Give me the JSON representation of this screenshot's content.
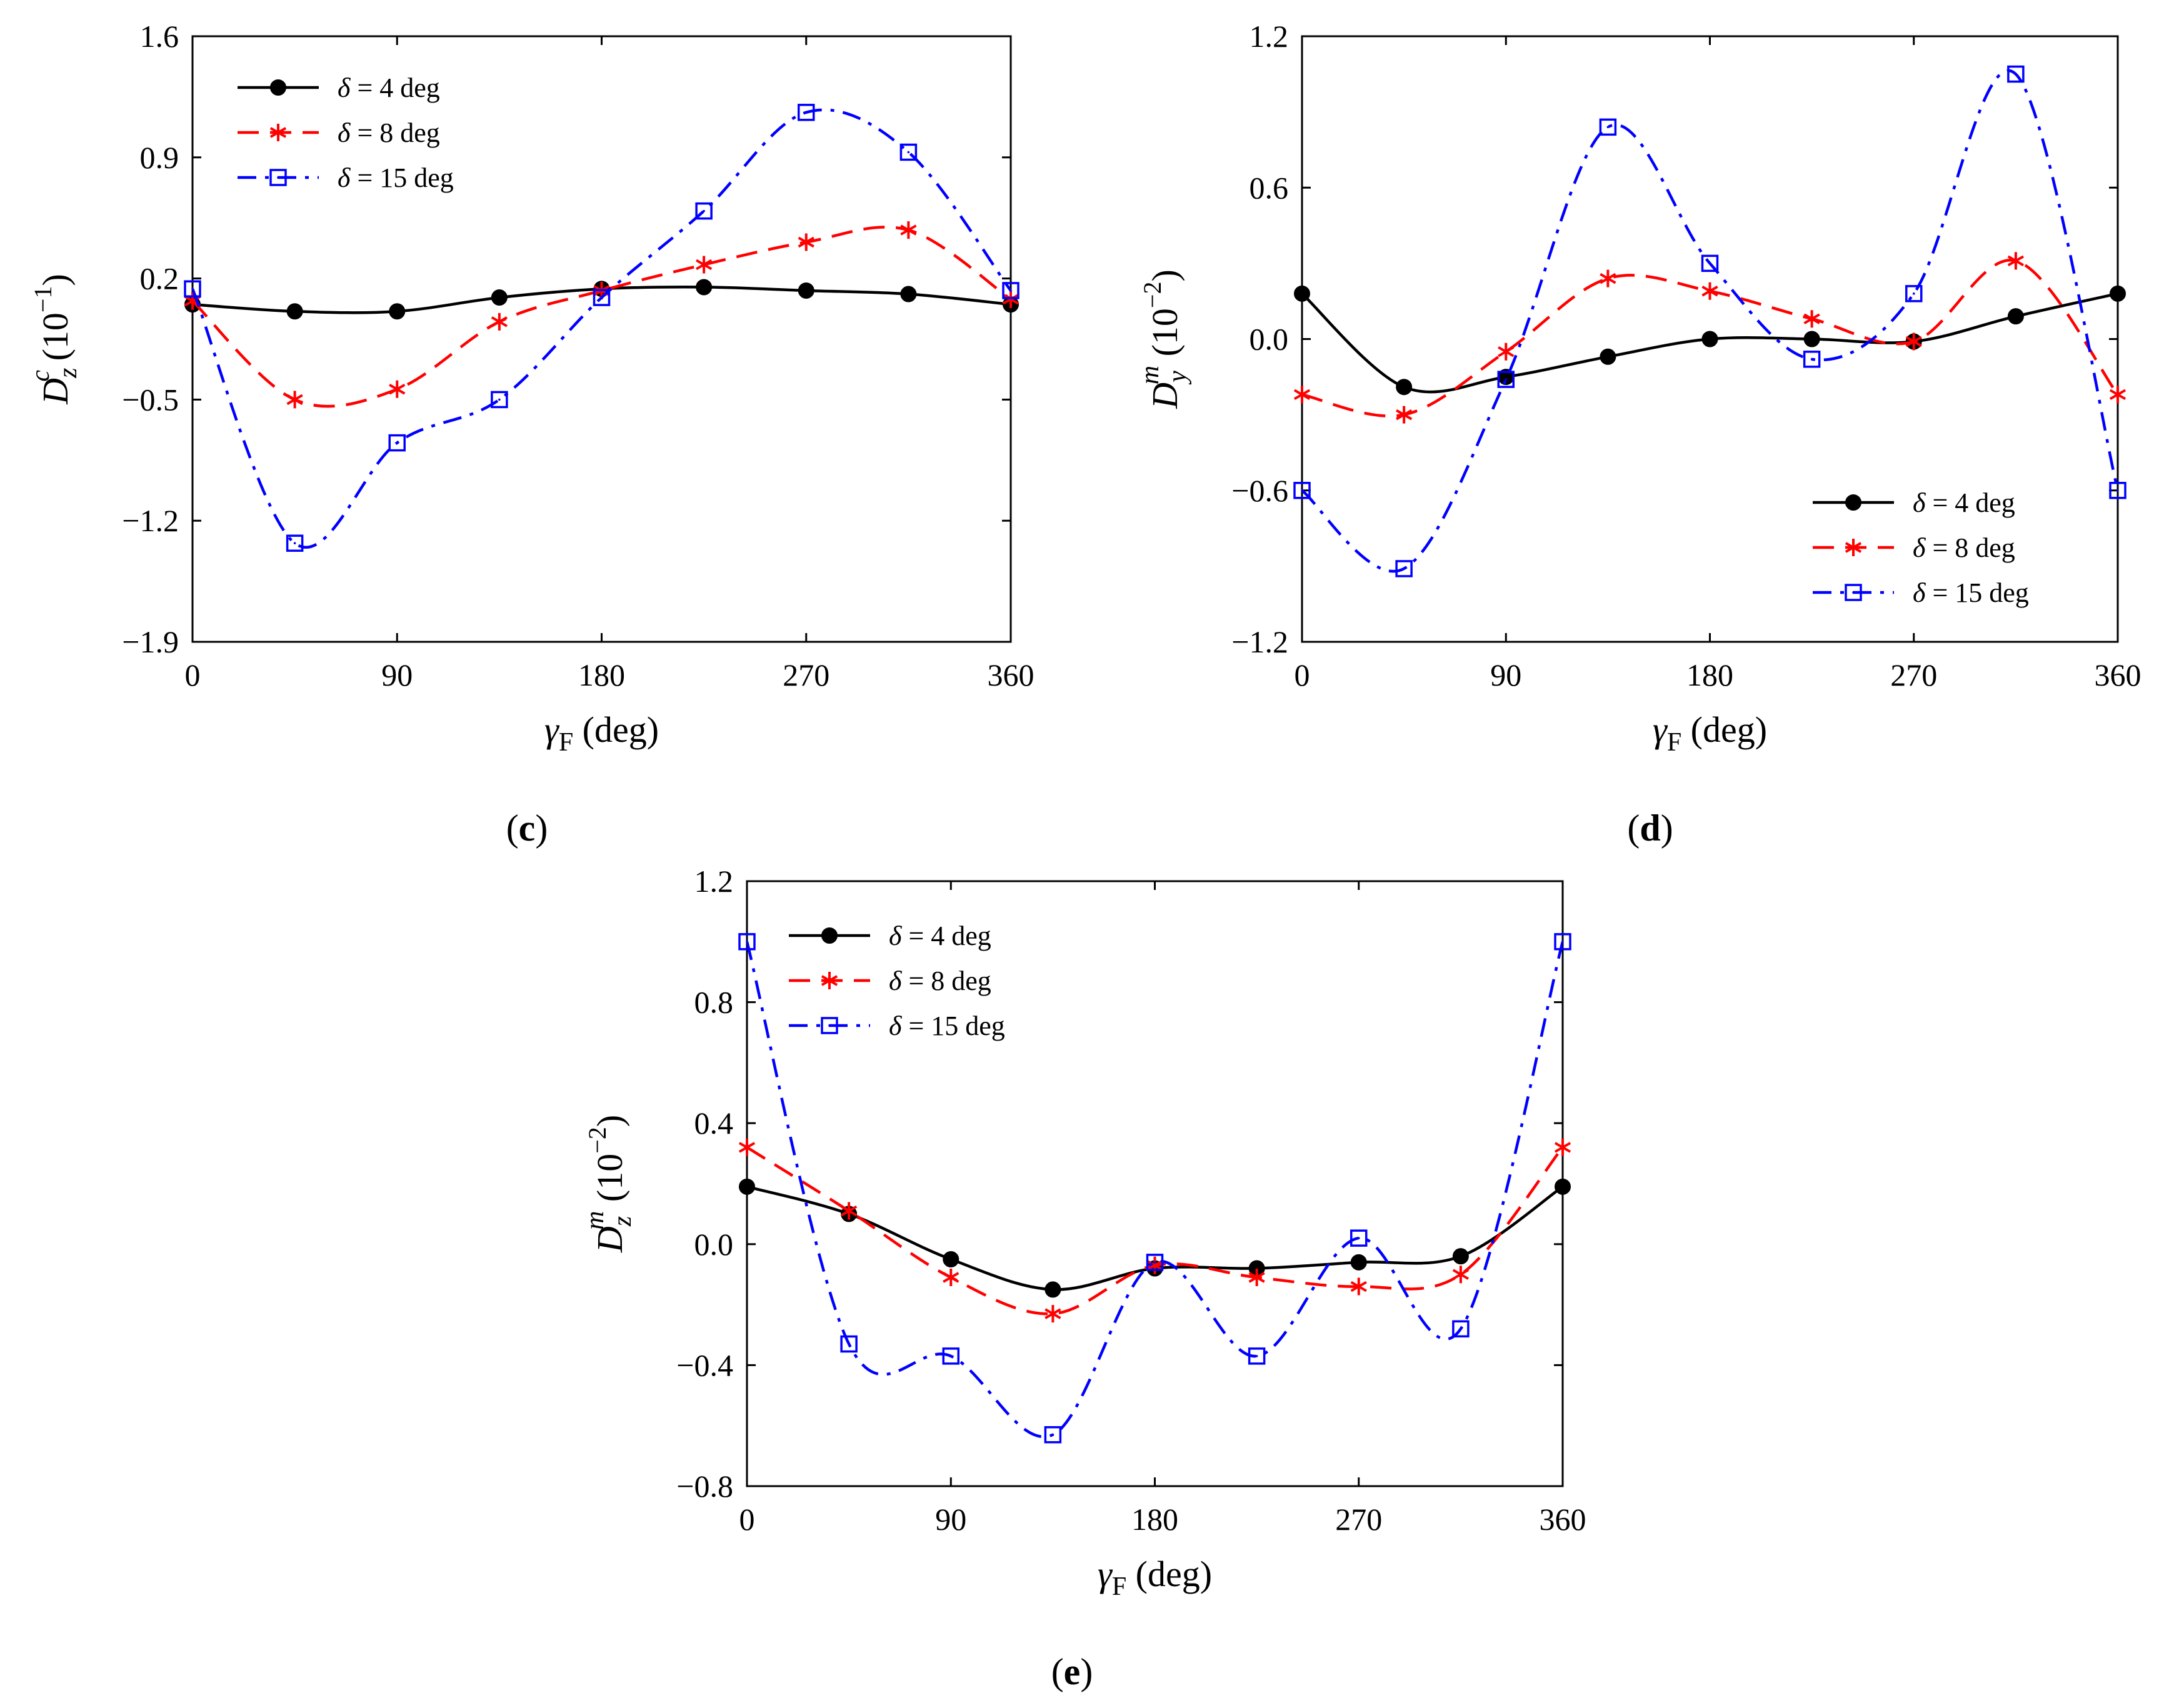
{
  "chart_data": [
    {
      "type": "line",
      "panel_label": "(c)",
      "xlabel": "γF (deg)",
      "ylabel": "Dzc (10−1)",
      "ylabel_parts": {
        "base": "D",
        "sup": "c",
        "sub": "z",
        "unit_base": "(10",
        "unit_exp": "−1",
        "unit_close": ")"
      },
      "xlabel_parts": {
        "base": "γ",
        "sub": "F",
        "unit": "(deg)"
      },
      "xlim": [
        0,
        360
      ],
      "ylim": [
        -1.9,
        1.6
      ],
      "xticks": [
        0,
        90,
        180,
        270,
        360
      ],
      "xtick_labels": [
        "0",
        "90",
        "180",
        "270",
        "360"
      ],
      "yticks": [
        -1.9,
        -1.2,
        -0.5,
        0.2,
        0.9,
        1.6
      ],
      "ytick_labels": [
        "−1.9",
        "−1.2",
        "−0.5",
        "0.2",
        "0.9",
        "1.6"
      ],
      "legend_position": "top-left",
      "x": [
        0,
        45,
        90,
        135,
        180,
        225,
        270,
        315,
        360
      ],
      "series": [
        {
          "name": "δ = 4 deg",
          "values": [
            0.05,
            0.01,
            0.01,
            0.09,
            0.14,
            0.15,
            0.13,
            0.11,
            0.05
          ]
        },
        {
          "name": "δ = 8 deg",
          "values": [
            0.07,
            -0.5,
            -0.44,
            -0.05,
            0.13,
            0.28,
            0.41,
            0.48,
            0.08
          ]
        },
        {
          "name": "δ = 15 deg",
          "values": [
            0.14,
            -1.33,
            -0.75,
            -0.5,
            0.09,
            0.59,
            1.16,
            0.93,
            0.13
          ]
        }
      ]
    },
    {
      "type": "line",
      "panel_label": "(d)",
      "xlabel": "γF (deg)",
      "ylabel": "Dym (10−2)",
      "ylabel_parts": {
        "base": "D",
        "sup": "m",
        "sub": "y",
        "unit_base": "(10",
        "unit_exp": "−2",
        "unit_close": ")"
      },
      "xlabel_parts": {
        "base": "γ",
        "sub": "F",
        "unit": "(deg)"
      },
      "xlim": [
        0,
        360
      ],
      "ylim": [
        -1.2,
        1.2
      ],
      "xticks": [
        0,
        90,
        180,
        270,
        360
      ],
      "xtick_labels": [
        "0",
        "90",
        "180",
        "270",
        "360"
      ],
      "yticks": [
        -1.2,
        -0.6,
        0.0,
        0.6,
        1.2
      ],
      "ytick_labels": [
        "−1.2",
        "−0.6",
        "0.0",
        "0.6",
        "1.2"
      ],
      "legend_position": "bottom-right",
      "x": [
        0,
        45,
        90,
        135,
        180,
        225,
        270,
        315,
        360
      ],
      "series": [
        {
          "name": "δ = 4 deg",
          "values": [
            0.18,
            -0.19,
            -0.15,
            -0.07,
            0.0,
            0.0,
            -0.01,
            0.09,
            0.18
          ]
        },
        {
          "name": "δ = 8 deg",
          "values": [
            -0.22,
            -0.3,
            -0.05,
            0.24,
            0.19,
            0.08,
            -0.01,
            0.31,
            -0.22
          ]
        },
        {
          "name": "δ = 15 deg",
          "values": [
            -0.6,
            -0.91,
            -0.16,
            0.84,
            0.3,
            -0.08,
            0.18,
            1.05,
            -0.6
          ]
        }
      ]
    },
    {
      "type": "line",
      "panel_label": "(e)",
      "xlabel": "γF (deg)",
      "ylabel": "Dzm (10−2)",
      "ylabel_parts": {
        "base": "D",
        "sup": "m",
        "sub": "z",
        "unit_base": "(10",
        "unit_exp": "−2",
        "unit_close": ")"
      },
      "xlabel_parts": {
        "base": "γ",
        "sub": "F",
        "unit": "(deg)"
      },
      "xlim": [
        0,
        360
      ],
      "ylim": [
        -0.8,
        1.2
      ],
      "xticks": [
        0,
        90,
        180,
        270,
        360
      ],
      "xtick_labels": [
        "0",
        "90",
        "180",
        "270",
        "360"
      ],
      "yticks": [
        -0.8,
        -0.4,
        0.0,
        0.4,
        0.8,
        1.2
      ],
      "ytick_labels": [
        "−0.8",
        "−0.4",
        "0.0",
        "0.4",
        "0.8",
        "1.2"
      ],
      "legend_position": "top-left",
      "x": [
        0,
        45,
        90,
        135,
        180,
        225,
        270,
        315,
        360
      ],
      "series": [
        {
          "name": "δ = 4 deg",
          "values": [
            0.19,
            0.1,
            -0.05,
            -0.15,
            -0.08,
            -0.08,
            -0.06,
            -0.04,
            0.19
          ]
        },
        {
          "name": "δ = 8 deg",
          "values": [
            0.32,
            0.11,
            -0.11,
            -0.23,
            -0.07,
            -0.11,
            -0.14,
            -0.1,
            0.32
          ]
        },
        {
          "name": "δ = 15 deg",
          "values": [
            1.0,
            -0.33,
            -0.37,
            -0.63,
            -0.06,
            -0.37,
            0.02,
            -0.28,
            1.0
          ]
        }
      ]
    }
  ],
  "legend": {
    "delta_symbol": "δ",
    "entries": [
      " = 4 deg",
      " = 8 deg",
      " = 15 deg"
    ]
  },
  "styles": {
    "series_colors": [
      "#000000",
      "#ff0000",
      "#0000ff"
    ],
    "series_markers": [
      "filled-circle",
      "asterisk",
      "open-square"
    ],
    "series_dashes": [
      "solid",
      "dashed",
      "dash-dot"
    ]
  }
}
